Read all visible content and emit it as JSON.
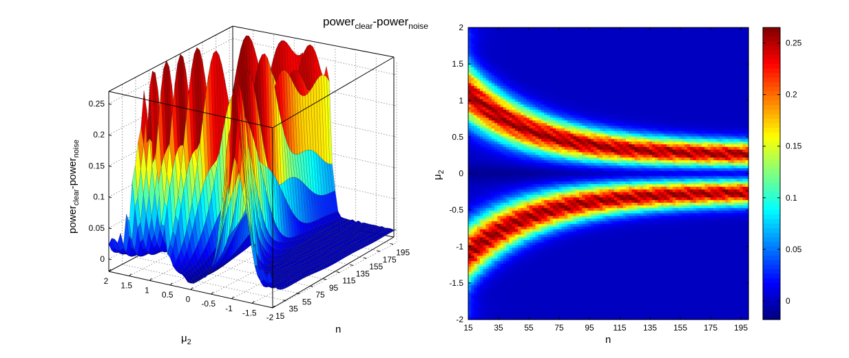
{
  "title": {
    "main": "power",
    "sub1": "clear",
    "mid": "-power",
    "sub2": "noise"
  },
  "chart_data": [
    {
      "type": "surface",
      "zlabel": {
        "main": "power",
        "sub1": "clear",
        "mid": "-power",
        "sub2": "noise"
      },
      "xlabel": {
        "main": "μ",
        "sub": "2"
      },
      "ylabel": "n",
      "x_ticks": [
        "2",
        "1.5",
        "1",
        "0.5",
        "0",
        "-0.5",
        "-1",
        "-1.5",
        "-2"
      ],
      "y_ticks": [
        "15",
        "35",
        "55",
        "75",
        "95",
        "115",
        "135",
        "155",
        "175",
        "195"
      ],
      "z_ticks": [
        "0",
        "0.05",
        "0.1",
        "0.15",
        "0.2",
        "0.25"
      ],
      "xlim": [
        -2,
        2
      ],
      "ylim": [
        15,
        200
      ],
      "zlim": [
        -0.02,
        0.27
      ],
      "grid": true,
      "colormap": "jet"
    },
    {
      "type": "heatmap",
      "xlabel": "n",
      "ylabel": {
        "main": "μ",
        "sub": "2"
      },
      "x_ticks": [
        "15",
        "35",
        "55",
        "75",
        "95",
        "115",
        "135",
        "155",
        "175",
        "195"
      ],
      "y_ticks": [
        "2",
        "1.5",
        "1",
        "0.5",
        "0",
        "-0.5",
        "-1",
        "-1.5",
        "-2"
      ],
      "xlim": [
        15,
        200
      ],
      "ylim": [
        -2,
        2
      ],
      "colorbar_ticks": [
        "0.25",
        "0.2",
        "0.15",
        "0.1",
        "0.05",
        "0"
      ],
      "clim": [
        -0.018,
        0.265
      ],
      "colormap": "jet",
      "peak_model": {
        "mu_peak_at_n15": 1.1,
        "mu_peak_at_n200": 0.25,
        "peak_value": 0.255
      }
    }
  ]
}
